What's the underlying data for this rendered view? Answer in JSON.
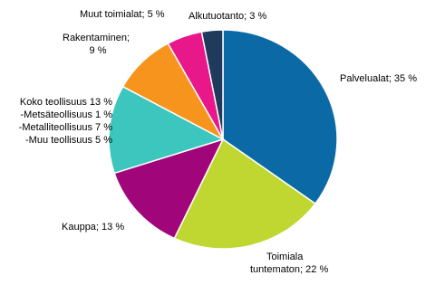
{
  "chart_data": {
    "type": "pie",
    "values": [
      35,
      22,
      13,
      13,
      9,
      5,
      3
    ],
    "value_labels": [
      [
        "Palvelualat; 35 %"
      ],
      [
        "Toimiala",
        "tuntematon; 22 %"
      ],
      [
        "Kauppa; 13 %"
      ],
      [
        "Koko teollisuus 13 %",
        "-Metsäteollisuus 1 %",
        "-Metalliteollisuus 7 %",
        "-Muu teollisuus 5 %"
      ],
      [
        "Rakentaminen;",
        "9 %"
      ],
      [
        "Muut toimialat; 5 %"
      ],
      [
        "Alkutuotanto; 3 %"
      ]
    ],
    "colors": [
      "#0b6aa6",
      "#bfd730",
      "#a0067a",
      "#3cc6be",
      "#f7941d",
      "#e8178a",
      "#1f3a5c"
    ]
  }
}
